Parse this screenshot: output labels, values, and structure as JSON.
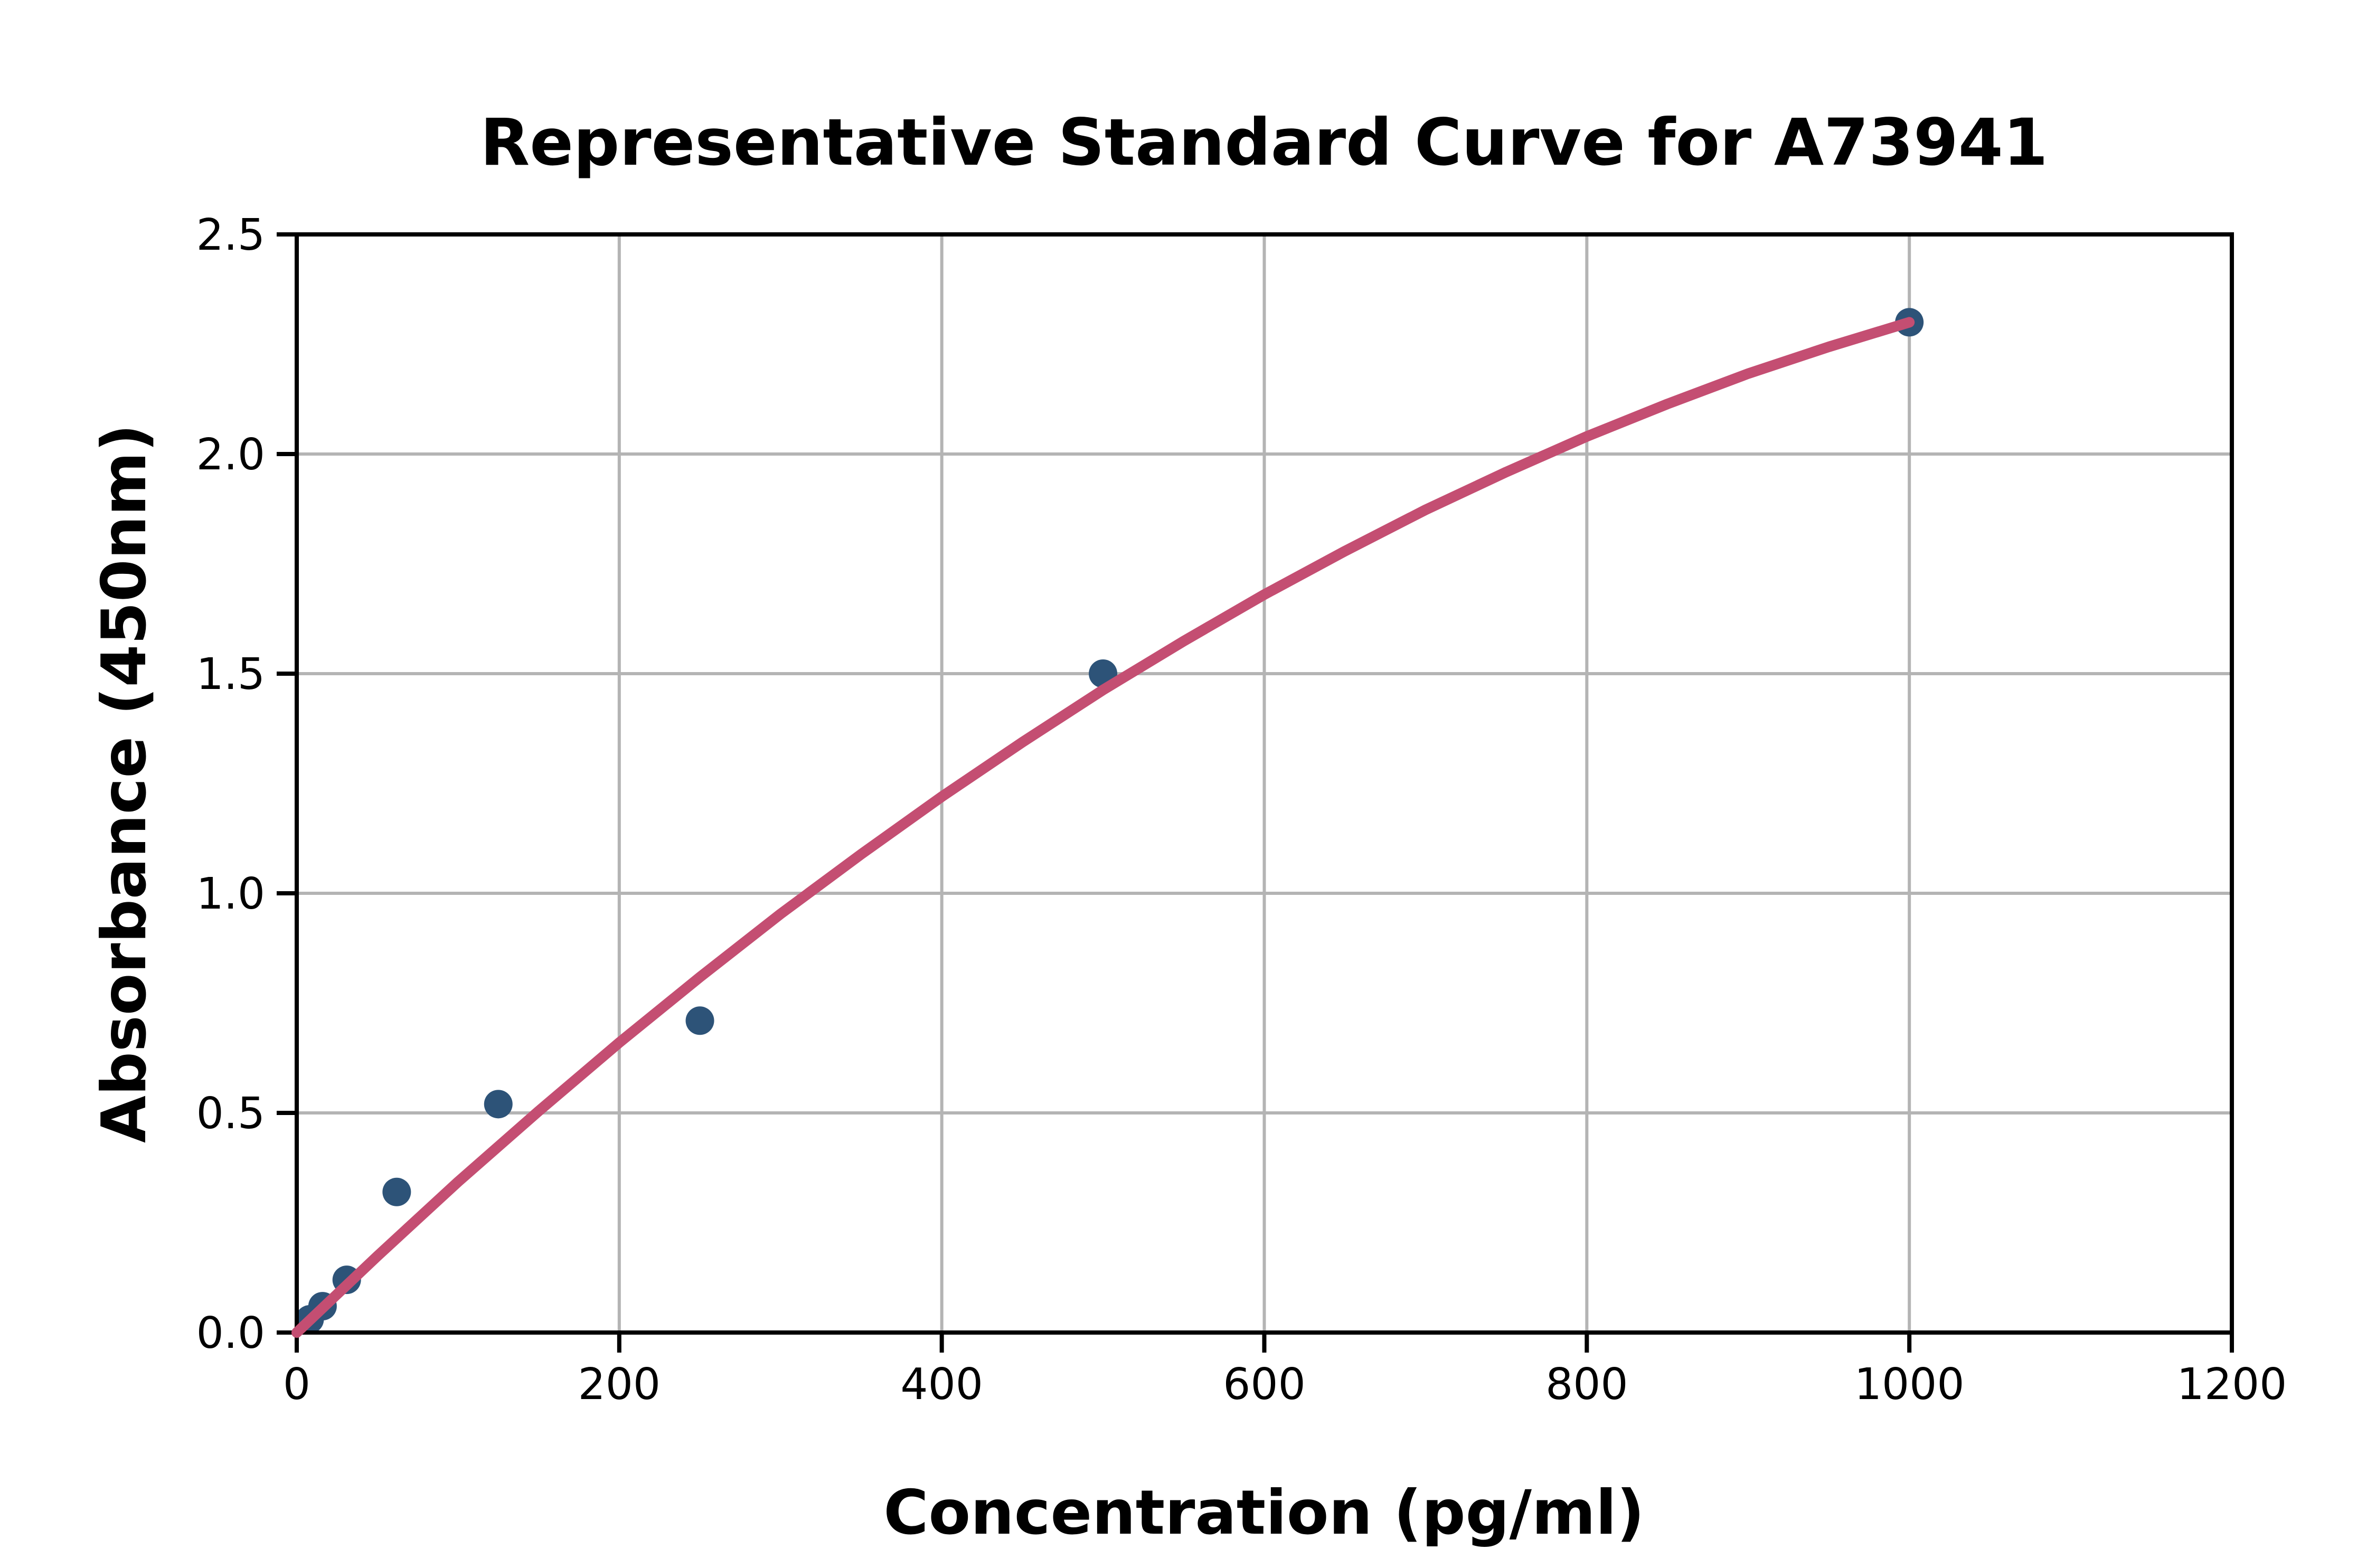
{
  "figure": {
    "background": "#ffffff"
  },
  "chart_data": {
    "type": "scatter",
    "title": "Representative Standard Curve for A73941",
    "xlabel": "Concentration (pg/ml)",
    "ylabel": "Absorbance (450nm)",
    "xlim": [
      0,
      1200
    ],
    "ylim": [
      0,
      2.5
    ],
    "grid": true,
    "legend": "none",
    "x_ticks": [
      0,
      200,
      400,
      600,
      800,
      1000,
      1200
    ],
    "x_tick_labels": [
      "0",
      "200",
      "400",
      "600",
      "800",
      "1000",
      "1200"
    ],
    "y_ticks": [
      0,
      0.5,
      1,
      1.5,
      2,
      2.5
    ],
    "y_tick_labels": [
      "0.0",
      "0.5",
      "1.0",
      "1.5",
      "2.0",
      "2.5"
    ],
    "series": [
      {
        "name": "standard-points",
        "type": "scatter",
        "color": "#2d5378",
        "points": [
          [
            8,
            0.03
          ],
          [
            16,
            0.06
          ],
          [
            31,
            0.12
          ],
          [
            62,
            0.32
          ],
          [
            125,
            0.52
          ],
          [
            250,
            0.71
          ],
          [
            500,
            1.5
          ],
          [
            1000,
            2.3
          ]
        ]
      },
      {
        "name": "fitted-curve",
        "type": "line",
        "color": "#c44e72",
        "points": [
          [
            0,
            0
          ],
          [
            50,
            0.174
          ],
          [
            100,
            0.343
          ],
          [
            150,
            0.504
          ],
          [
            200,
            0.66
          ],
          [
            250,
            0.809
          ],
          [
            300,
            0.953
          ],
          [
            350,
            1.089
          ],
          [
            400,
            1.22
          ],
          [
            450,
            1.344
          ],
          [
            500,
            1.463
          ],
          [
            550,
            1.574
          ],
          [
            600,
            1.68
          ],
          [
            650,
            1.779
          ],
          [
            700,
            1.873
          ],
          [
            750,
            1.959
          ],
          [
            800,
            2.04
          ],
          [
            850,
            2.114
          ],
          [
            900,
            2.183
          ],
          [
            950,
            2.244
          ],
          [
            1000,
            2.3
          ]
        ]
      }
    ],
    "colors": {
      "marker": "#2d5378",
      "curve": "#c44e72",
      "gridline": "#b4b4b4",
      "axis": "#000000",
      "background": "#ffffff"
    }
  }
}
